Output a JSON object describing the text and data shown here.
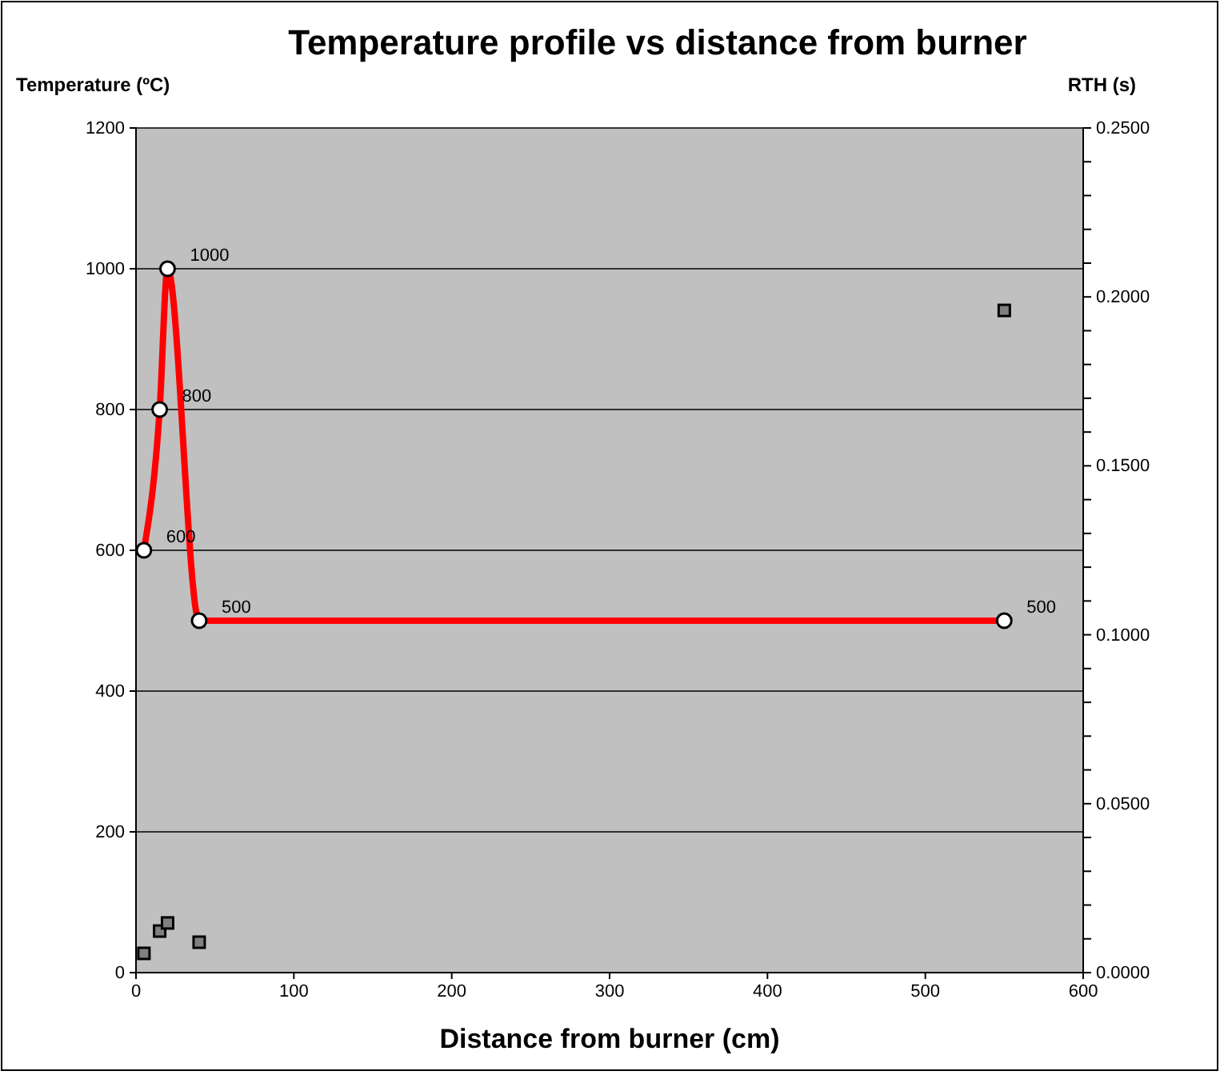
{
  "chart_data": {
    "type": "line",
    "title": "Temperature profile vs distance from burner",
    "xlabel": "Distance from burner (cm)",
    "ylabel": "Temperature (ºC)",
    "y2label": "RTH (s)",
    "xlim": [
      0,
      600
    ],
    "xticks": [
      0,
      100,
      200,
      300,
      400,
      500,
      600
    ],
    "ylim": [
      0,
      1200
    ],
    "yticks": [
      0,
      200,
      400,
      600,
      800,
      1000,
      1200
    ],
    "y2lim": [
      0,
      0.25
    ],
    "y2ticks": [
      {
        "value": 0,
        "label": "0.0000"
      },
      {
        "value": 0.01,
        "label": null
      },
      {
        "value": 0.02,
        "label": null
      },
      {
        "value": 0.03,
        "label": null
      },
      {
        "value": 0.04,
        "label": null
      },
      {
        "value": 0.05,
        "label": "0.0500"
      },
      {
        "value": 0.06,
        "label": null
      },
      {
        "value": 0.07,
        "label": null
      },
      {
        "value": 0.08,
        "label": null
      },
      {
        "value": 0.09,
        "label": null
      },
      {
        "value": 0.1,
        "label": "0.1000"
      },
      {
        "value": 0.11,
        "label": null
      },
      {
        "value": 0.12,
        "label": null
      },
      {
        "value": 0.13,
        "label": null
      },
      {
        "value": 0.14,
        "label": null
      },
      {
        "value": 0.15,
        "label": "0.1500"
      },
      {
        "value": 0.16,
        "label": null
      },
      {
        "value": 0.17,
        "label": null
      },
      {
        "value": 0.18,
        "label": null
      },
      {
        "value": 0.19,
        "label": null
      },
      {
        "value": 0.2,
        "label": "0.2000"
      },
      {
        "value": 0.21,
        "label": null
      },
      {
        "value": 0.22,
        "label": null
      },
      {
        "value": 0.23,
        "label": null
      },
      {
        "value": 0.24,
        "label": null
      },
      {
        "value": 0.25,
        "label": "0.2500"
      }
    ],
    "grid": "y",
    "series": [
      {
        "color": "#ff0000",
        "x": [
          5,
          15,
          20,
          40,
          550
        ],
        "values": [
          600,
          800,
          1000,
          500,
          500
        ],
        "marker": "circle",
        "line_style": "solid",
        "data_labels": true
      },
      {
        "type": "scatter",
        "axis": "y2",
        "color": "#808080",
        "x": [
          5,
          15,
          20,
          40,
          550
        ],
        "values": [
          0.0057,
          0.0123,
          0.0147,
          0.009,
          0.196
        ],
        "marker": "square"
      }
    ]
  }
}
